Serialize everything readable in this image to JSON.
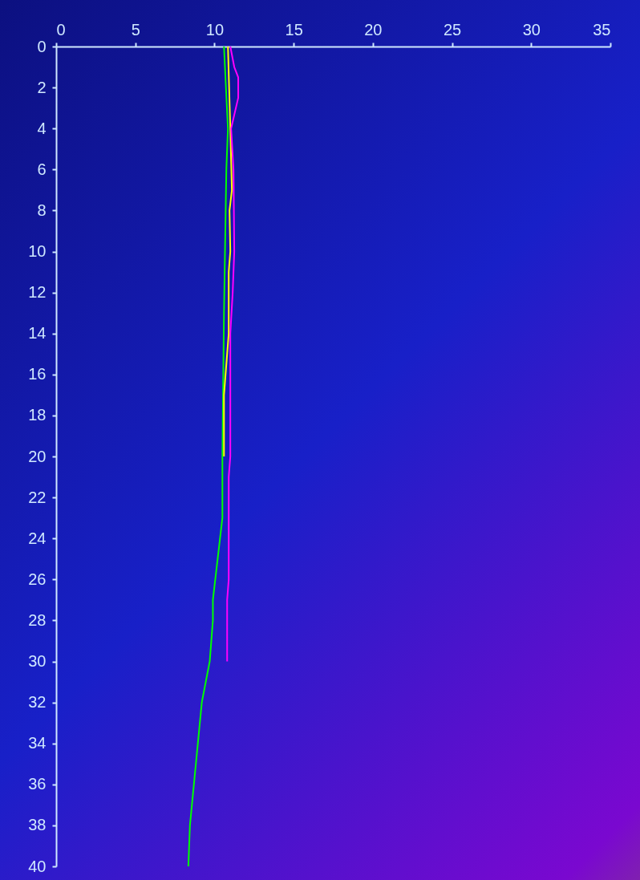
{
  "chart_data": {
    "type": "line",
    "xlim": [
      0,
      35
    ],
    "xticks": [
      0,
      5,
      10,
      15,
      20,
      25,
      30,
      35
    ],
    "ylim": [
      40,
      0
    ],
    "yticks": [
      0,
      2,
      4,
      6,
      8,
      10,
      12,
      14,
      16,
      18,
      20,
      22,
      24,
      26,
      28,
      30,
      32,
      34,
      36,
      38,
      40
    ],
    "grid": false,
    "legend": false,
    "series": [
      {
        "color": "#00ff00",
        "x": [
          10.6,
          10.85,
          10.75,
          10.6,
          10.5,
          10.5,
          9.9,
          9.9,
          9.7,
          9.2,
          8.45,
          8.35
        ],
        "values": [
          0,
          4,
          6,
          13,
          20,
          23,
          27,
          28,
          30,
          32,
          38,
          40
        ]
      },
      {
        "color": "#ffff00",
        "x": [
          10.85,
          11.0,
          11.1,
          10.95,
          11.0,
          10.9,
          10.9,
          10.6,
          10.6
        ],
        "values": [
          0,
          4,
          7,
          8,
          10,
          11,
          14,
          17,
          20
        ]
      },
      {
        "color": "#ff00ff",
        "x": [
          11.0,
          11.25,
          11.5,
          11.5,
          11.05,
          11.2,
          11.25,
          11.15,
          11.0,
          11.0,
          11.0,
          10.9,
          10.9,
          10.8,
          10.8
        ],
        "values": [
          0,
          1,
          1.5,
          2.5,
          4,
          6,
          10,
          12,
          14,
          17,
          20,
          21,
          26,
          27,
          30
        ]
      }
    ]
  }
}
